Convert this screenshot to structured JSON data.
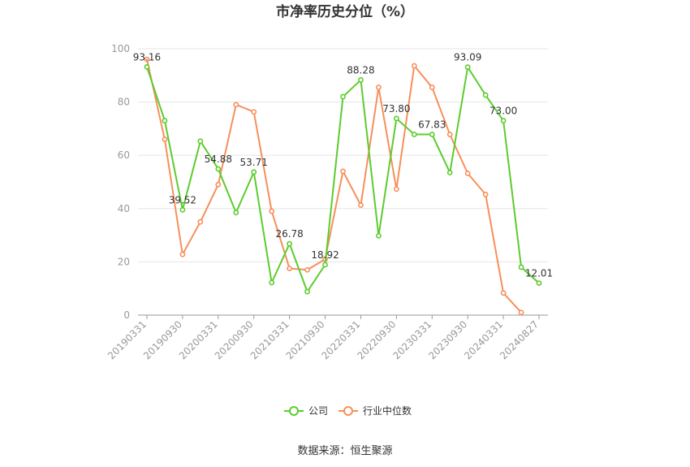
{
  "chart_data": {
    "type": "line",
    "title": "市净率历史分位（%）",
    "categories": [
      "20190331",
      "20190630",
      "20190930",
      "20191231",
      "20200331",
      "20200630",
      "20200930",
      "20201231",
      "20210331",
      "20210630",
      "20210930",
      "20211231",
      "20220331",
      "20220630",
      "20220930",
      "20221231",
      "20230331",
      "20230630",
      "20230930",
      "20231231",
      "20240331",
      "20240630",
      "20240827"
    ],
    "x_tick_labels": [
      "20190331",
      "20190930",
      "20200331",
      "20200930",
      "20210331",
      "20210930",
      "20220331",
      "20220930",
      "20230331",
      "20230930",
      "20240331",
      "20240827"
    ],
    "y_ticks": [
      0,
      20,
      40,
      60,
      80,
      100
    ],
    "ylim": [
      0,
      100
    ],
    "grid": true,
    "legend_position": "bottom",
    "series": [
      {
        "name": "公司",
        "color": "#5ccc2e",
        "values": [
          93.16,
          73.0,
          39.52,
          65.3,
          54.88,
          38.5,
          53.71,
          12.2,
          26.78,
          8.8,
          18.92,
          82.0,
          88.28,
          29.8,
          73.8,
          67.83,
          67.83,
          53.5,
          93.09,
          82.6,
          73.0,
          18.0,
          12.01
        ]
      },
      {
        "name": "行业中位数",
        "color": "#f78f5b",
        "values": [
          96.0,
          66.0,
          22.8,
          35.0,
          49.0,
          79.0,
          76.3,
          39.0,
          17.5,
          17.0,
          21.0,
          54.0,
          41.3,
          85.5,
          47.3,
          93.6,
          85.5,
          67.8,
          53.2,
          45.3,
          8.3,
          1.0,
          null
        ]
      }
    ],
    "annotations": [
      {
        "series": 0,
        "index": 0,
        "text": "93.16"
      },
      {
        "series": 0,
        "index": 2,
        "text": "39.52"
      },
      {
        "series": 0,
        "index": 4,
        "text": "54.88"
      },
      {
        "series": 0,
        "index": 6,
        "text": "53.71"
      },
      {
        "series": 0,
        "index": 8,
        "text": "26.78"
      },
      {
        "series": 0,
        "index": 10,
        "text": "18.92"
      },
      {
        "series": 0,
        "index": 12,
        "text": "88.28"
      },
      {
        "series": 0,
        "index": 14,
        "text": "73.80"
      },
      {
        "series": 0,
        "index": 16,
        "text": "67.83"
      },
      {
        "series": 0,
        "index": 18,
        "text": "93.09"
      },
      {
        "series": 0,
        "index": 20,
        "text": "73.00"
      },
      {
        "series": 0,
        "index": 22,
        "text": "12.01"
      }
    ]
  },
  "footer": {
    "source": "数据来源：恒生聚源"
  }
}
